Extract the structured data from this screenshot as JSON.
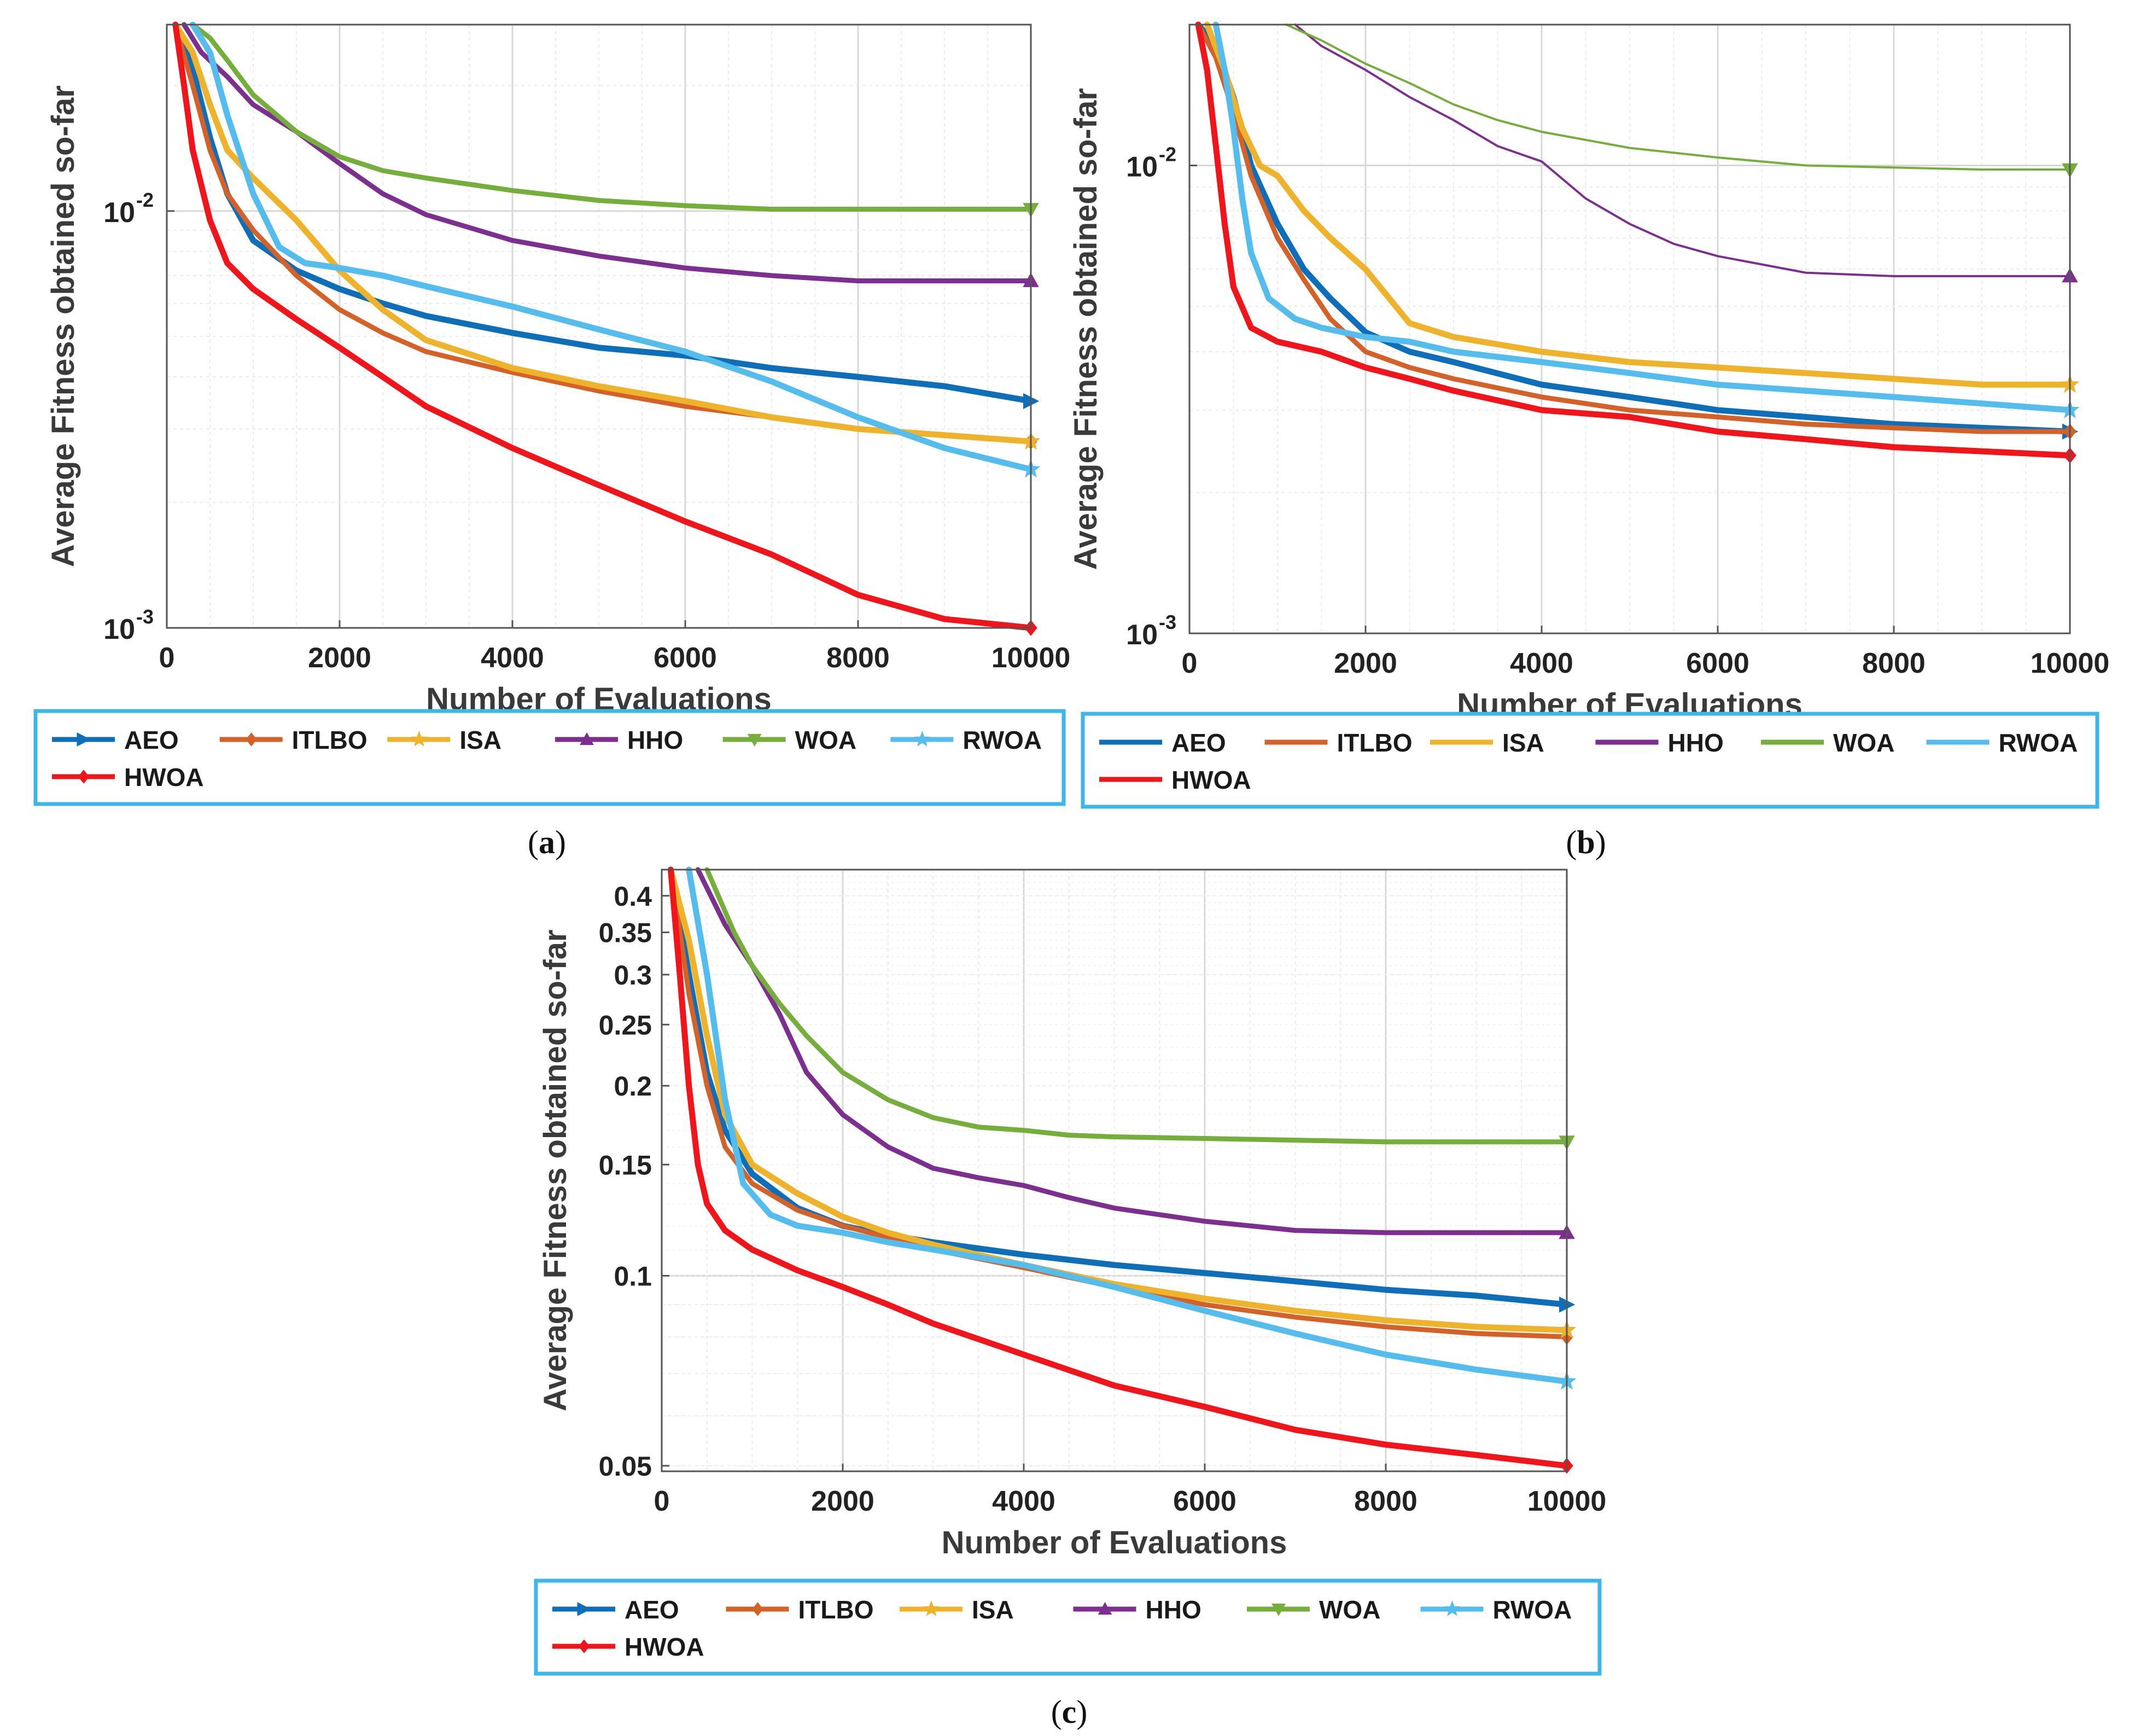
{
  "series_colors": {
    "AEO": "#0f6eb8",
    "ITLBO": "#d46128",
    "ISA": "#efb32b",
    "HHO": "#7d2f8f",
    "WOA": "#75ae3b",
    "RWOA": "#55bdee",
    "HWOA": "#f0141b"
  },
  "legend_border_color": "#3fb6e8",
  "chart_data": [
    {
      "id": "a",
      "type": "line",
      "caption": "a",
      "xlabel": "Number of Evaluations",
      "ylabel": "Average Fitness obtained so-far",
      "yscale": "log",
      "xlim": [
        0,
        10000
      ],
      "ylim": [
        0.001,
        0.028
      ],
      "xticks": [
        "0",
        "2000",
        "4000",
        "6000",
        "8000",
        "10000"
      ],
      "yticks": [
        {
          "value": 0.01,
          "base": "10",
          "exp": "-2"
        },
        {
          "value": 0.001,
          "base": "10",
          "exp": "-3"
        }
      ],
      "legend": [
        "AEO",
        "ITLBO",
        "ISA",
        "HHO",
        "WOA",
        "RWOA",
        "HWOA"
      ],
      "series": [
        {
          "name": "AEO",
          "x": [
            100,
            300,
            500,
            700,
            1000,
            1500,
            2000,
            2500,
            3000,
            4000,
            5000,
            6000,
            7000,
            8000,
            9000,
            10000
          ],
          "values": [
            0.028,
            0.022,
            0.015,
            0.011,
            0.0085,
            0.0072,
            0.0065,
            0.006,
            0.0056,
            0.0051,
            0.0047,
            0.0045,
            0.0042,
            0.004,
            0.0038,
            0.0035
          ]
        },
        {
          "name": "ITLBO",
          "x": [
            100,
            300,
            500,
            700,
            1000,
            1500,
            2000,
            2500,
            3000,
            4000,
            5000,
            6000,
            7000,
            8000,
            9000,
            10000
          ],
          "values": [
            0.028,
            0.02,
            0.014,
            0.011,
            0.009,
            0.007,
            0.0058,
            0.0051,
            0.0046,
            0.0041,
            0.0037,
            0.0034,
            0.0032,
            0.003,
            0.0029,
            0.0028
          ]
        },
        {
          "name": "ISA",
          "x": [
            100,
            300,
            500,
            700,
            1000,
            1500,
            2000,
            2500,
            3000,
            4000,
            5000,
            6000,
            7000,
            8000,
            9000,
            10000
          ],
          "values": [
            0.028,
            0.024,
            0.018,
            0.014,
            0.012,
            0.0095,
            0.0072,
            0.0058,
            0.0049,
            0.0042,
            0.0038,
            0.0035,
            0.0032,
            0.003,
            0.0029,
            0.0028
          ]
        },
        {
          "name": "HHO",
          "x": [
            200,
            400,
            700,
            1000,
            1500,
            2000,
            2500,
            3000,
            4000,
            5000,
            6000,
            7000,
            8000,
            9000,
            10000
          ],
          "values": [
            0.028,
            0.024,
            0.021,
            0.018,
            0.0155,
            0.013,
            0.011,
            0.0098,
            0.0085,
            0.0078,
            0.0073,
            0.007,
            0.0068,
            0.0068,
            0.0068
          ]
        },
        {
          "name": "WOA",
          "x": [
            300,
            500,
            700,
            1000,
            1500,
            2000,
            2500,
            3000,
            4000,
            5000,
            6000,
            7000,
            8000,
            9000,
            10000
          ],
          "values": [
            0.028,
            0.026,
            0.023,
            0.019,
            0.0155,
            0.0135,
            0.0125,
            0.012,
            0.0112,
            0.0106,
            0.0103,
            0.0101,
            0.0101,
            0.0101,
            0.0101
          ]
        },
        {
          "name": "RWOA",
          "x": [
            300,
            500,
            700,
            1000,
            1300,
            1600,
            2000,
            2500,
            3000,
            4000,
            5000,
            6000,
            7000,
            8000,
            9000,
            10000
          ],
          "values": [
            0.028,
            0.024,
            0.017,
            0.011,
            0.0082,
            0.0075,
            0.0073,
            0.007,
            0.0066,
            0.0059,
            0.0052,
            0.0046,
            0.0039,
            0.0032,
            0.0027,
            0.0024
          ]
        },
        {
          "name": "HWOA",
          "x": [
            100,
            200,
            300,
            500,
            700,
            1000,
            1500,
            2000,
            2500,
            3000,
            4000,
            5000,
            6000,
            7000,
            8000,
            9000,
            10000
          ],
          "values": [
            0.028,
            0.02,
            0.014,
            0.0095,
            0.0075,
            0.0065,
            0.0055,
            0.0047,
            0.004,
            0.0034,
            0.0027,
            0.0022,
            0.0018,
            0.0015,
            0.0012,
            0.00105,
            0.001
          ]
        }
      ]
    },
    {
      "id": "b",
      "type": "line",
      "caption": "b",
      "xlabel": "Number of Evaluations",
      "ylabel": "Average Fitness obtained so-far",
      "yscale": "log",
      "xlim": [
        0,
        10000
      ],
      "ylim": [
        0.001,
        0.02
      ],
      "xticks": [
        "0",
        "2000",
        "4000",
        "6000",
        "8000",
        "10000"
      ],
      "yticks": [
        {
          "value": 0.01,
          "base": "10",
          "exp": "-2"
        },
        {
          "value": 0.001,
          "base": "10",
          "exp": "-3"
        }
      ],
      "legend": [
        "AEO",
        "ITLBO",
        "ISA",
        "HHO",
        "WOA",
        "RWOA",
        "HWOA"
      ],
      "series": [
        {
          "name": "AEO",
          "x": [
            100,
            300,
            500,
            700,
            1000,
            1300,
            1600,
            2000,
            2500,
            3000,
            4000,
            5000,
            6000,
            7000,
            8000,
            9000,
            10000
          ],
          "values": [
            0.02,
            0.018,
            0.014,
            0.01,
            0.0075,
            0.006,
            0.0052,
            0.0044,
            0.004,
            0.0038,
            0.0034,
            0.0032,
            0.003,
            0.0029,
            0.0028,
            0.00275,
            0.0027
          ]
        },
        {
          "name": "ITLBO",
          "x": [
            100,
            300,
            500,
            700,
            1000,
            1300,
            1600,
            2000,
            2500,
            3000,
            4000,
            5000,
            6000,
            7000,
            8000,
            9000,
            10000
          ],
          "values": [
            0.02,
            0.017,
            0.013,
            0.0095,
            0.007,
            0.0057,
            0.0047,
            0.004,
            0.0037,
            0.0035,
            0.0032,
            0.003,
            0.0029,
            0.0028,
            0.00275,
            0.0027,
            0.0027
          ]
        },
        {
          "name": "ISA",
          "x": [
            200,
            400,
            600,
            800,
            1000,
            1300,
            1600,
            2000,
            2500,
            3000,
            4000,
            5000,
            6000,
            7000,
            8000,
            9000,
            10000
          ],
          "values": [
            0.02,
            0.016,
            0.012,
            0.01,
            0.0095,
            0.008,
            0.007,
            0.006,
            0.0046,
            0.0043,
            0.004,
            0.0038,
            0.0037,
            0.0036,
            0.0035,
            0.0034,
            0.0034
          ]
        },
        {
          "name": "HHO",
          "x": [
            1200,
            1500,
            2000,
            2500,
            3000,
            3500,
            4000,
            4500,
            5000,
            5500,
            6000,
            7000,
            8000,
            9000,
            10000
          ],
          "values": [
            0.02,
            0.018,
            0.016,
            0.014,
            0.0125,
            0.011,
            0.0102,
            0.0085,
            0.0075,
            0.0068,
            0.0064,
            0.0059,
            0.0058,
            0.0058,
            0.0058
          ]
        },
        {
          "name": "WOA",
          "x": [
            1100,
            1500,
            2000,
            2500,
            3000,
            3500,
            4000,
            5000,
            6000,
            7000,
            8000,
            9000,
            10000
          ],
          "values": [
            0.02,
            0.0185,
            0.0165,
            0.015,
            0.0135,
            0.0125,
            0.0118,
            0.0109,
            0.0104,
            0.01,
            0.0099,
            0.0098,
            0.0098
          ]
        },
        {
          "name": "RWOA",
          "x": [
            300,
            400,
            500,
            600,
            700,
            900,
            1200,
            1500,
            2000,
            2500,
            3000,
            4000,
            5000,
            6000,
            7000,
            8000,
            9000,
            10000
          ],
          "values": [
            0.02,
            0.016,
            0.012,
            0.0085,
            0.0065,
            0.0052,
            0.0047,
            0.0045,
            0.0043,
            0.0042,
            0.004,
            0.0038,
            0.0036,
            0.0034,
            0.0033,
            0.0032,
            0.0031,
            0.003
          ]
        },
        {
          "name": "HWOA",
          "x": [
            100,
            200,
            300,
            400,
            500,
            700,
            1000,
            1500,
            2000,
            2500,
            3000,
            4000,
            5000,
            6000,
            7000,
            8000,
            9000,
            10000
          ],
          "values": [
            0.02,
            0.016,
            0.011,
            0.0075,
            0.0055,
            0.0045,
            0.0042,
            0.004,
            0.0037,
            0.0035,
            0.0033,
            0.003,
            0.0029,
            0.0027,
            0.0026,
            0.0025,
            0.00245,
            0.0024
          ]
        }
      ]
    },
    {
      "id": "c",
      "type": "line",
      "caption": "c",
      "xlabel": "Number of Evaluations",
      "ylabel": "Average Fitness obtained so-far",
      "yscale": "log",
      "xlim": [
        0,
        10000
      ],
      "ylim": [
        0.049,
        0.44
      ],
      "xticks": [
        "0",
        "2000",
        "4000",
        "6000",
        "8000",
        "10000"
      ],
      "yticks": [
        {
          "value": 0.4,
          "label": "0.4"
        },
        {
          "value": 0.35,
          "label": "0.35"
        },
        {
          "value": 0.3,
          "label": "0.3"
        },
        {
          "value": 0.25,
          "label": "0.25"
        },
        {
          "value": 0.2,
          "label": "0.2"
        },
        {
          "value": 0.15,
          "label": "0.15"
        },
        {
          "value": 0.1,
          "label": "0.1"
        },
        {
          "value": 0.05,
          "label": "0.05"
        }
      ],
      "legend": [
        "AEO",
        "ITLBO",
        "ISA",
        "HHO",
        "WOA",
        "RWOA",
        "HWOA"
      ],
      "series": [
        {
          "name": "AEO",
          "x": [
            100,
            300,
            500,
            700,
            1000,
            1500,
            2000,
            2500,
            3000,
            4000,
            5000,
            6000,
            7000,
            8000,
            9000,
            10000
          ],
          "values": [
            0.44,
            0.3,
            0.21,
            0.17,
            0.145,
            0.128,
            0.12,
            0.116,
            0.113,
            0.108,
            0.104,
            0.101,
            0.098,
            0.095,
            0.093,
            0.09
          ]
        },
        {
          "name": "ITLBO",
          "x": [
            100,
            300,
            500,
            700,
            1000,
            1500,
            2000,
            2500,
            3000,
            4000,
            5000,
            6000,
            7000,
            8000,
            9000,
            10000
          ],
          "values": [
            0.44,
            0.28,
            0.2,
            0.16,
            0.14,
            0.127,
            0.12,
            0.115,
            0.11,
            0.103,
            0.096,
            0.09,
            0.086,
            0.083,
            0.081,
            0.08
          ]
        },
        {
          "name": "ISA",
          "x": [
            100,
            300,
            500,
            700,
            1000,
            1500,
            2000,
            2500,
            3000,
            4000,
            5000,
            6000,
            7000,
            8000,
            9000,
            10000
          ],
          "values": [
            0.44,
            0.34,
            0.24,
            0.18,
            0.15,
            0.135,
            0.124,
            0.117,
            0.112,
            0.104,
            0.097,
            0.092,
            0.088,
            0.085,
            0.083,
            0.082
          ]
        },
        {
          "name": "HHO",
          "x": [
            400,
            700,
            1000,
            1300,
            1600,
            2000,
            2500,
            3000,
            3500,
            4000,
            4500,
            5000,
            6000,
            7000,
            8000,
            9000,
            10000
          ],
          "values": [
            0.44,
            0.36,
            0.31,
            0.26,
            0.21,
            0.18,
            0.16,
            0.148,
            0.143,
            0.139,
            0.133,
            0.128,
            0.122,
            0.118,
            0.117,
            0.117,
            0.117
          ]
        },
        {
          "name": "WOA",
          "x": [
            500,
            800,
            1000,
            1300,
            1600,
            2000,
            2500,
            3000,
            3500,
            4000,
            4500,
            5000,
            6000,
            7000,
            8000,
            9000,
            10000
          ],
          "values": [
            0.44,
            0.35,
            0.31,
            0.27,
            0.24,
            0.21,
            0.19,
            0.178,
            0.172,
            0.17,
            0.167,
            0.166,
            0.165,
            0.164,
            0.163,
            0.163,
            0.163
          ]
        },
        {
          "name": "RWOA",
          "x": [
            300,
            500,
            700,
            900,
            1200,
            1500,
            2000,
            2500,
            3000,
            4000,
            5000,
            6000,
            7000,
            8000,
            9000,
            10000
          ],
          "values": [
            0.44,
            0.3,
            0.19,
            0.14,
            0.125,
            0.12,
            0.117,
            0.113,
            0.11,
            0.104,
            0.096,
            0.088,
            0.081,
            0.075,
            0.071,
            0.068
          ]
        },
        {
          "name": "HWOA",
          "x": [
            100,
            200,
            300,
            400,
            500,
            700,
            1000,
            1500,
            2000,
            2500,
            3000,
            4000,
            5000,
            6000,
            7000,
            8000,
            9000,
            10000
          ],
          "values": [
            0.44,
            0.3,
            0.2,
            0.15,
            0.13,
            0.118,
            0.11,
            0.102,
            0.096,
            0.09,
            0.084,
            0.075,
            0.067,
            0.062,
            0.057,
            0.054,
            0.052,
            0.05
          ]
        }
      ]
    }
  ]
}
